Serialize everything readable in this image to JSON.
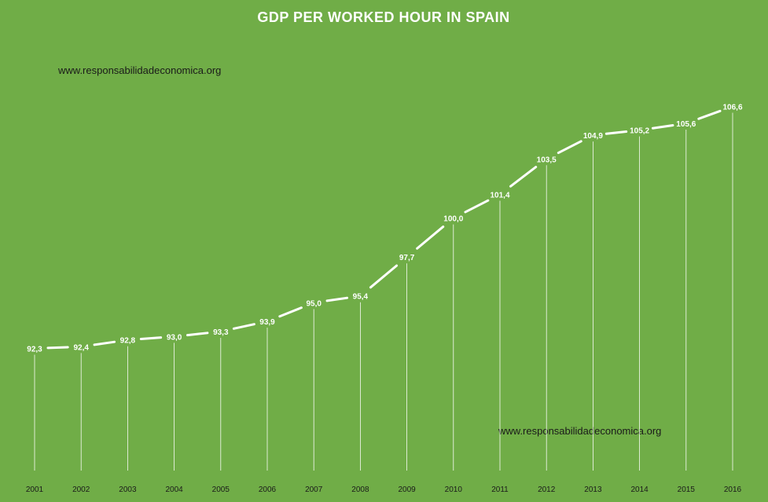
{
  "colors": {
    "background": "#70ad47",
    "line": "#ffffff",
    "text_dark": "#1a1a1a"
  },
  "watermarks": [
    "www.responsabilidadeconomica.org",
    "www.responsabilidadeconomica.org"
  ],
  "chart_data": {
    "type": "line",
    "title": "GDP PER WORKED HOUR IN SPAIN",
    "xlabel": "",
    "ylabel": "",
    "categories": [
      "2001",
      "2002",
      "2003",
      "2004",
      "2005",
      "2006",
      "2007",
      "2008",
      "2009",
      "2010",
      "2011",
      "2012",
      "2013",
      "2014",
      "2015",
      "2016"
    ],
    "series": [
      {
        "values": [
          92.3,
          92.4,
          92.8,
          93.0,
          93.3,
          93.9,
          95.0,
          95.4,
          97.7,
          100.0,
          101.4,
          103.5,
          104.9,
          105.2,
          105.6,
          106.6
        ],
        "labels": [
          "92,3",
          "92,4",
          "92,8",
          "93,0",
          "93,3",
          "93,9",
          "95,0",
          "95,4",
          "97,7",
          "100,0",
          "101,4",
          "103,5",
          "104,9",
          "105,2",
          "105,6",
          "106,6"
        ]
      }
    ],
    "grid": false,
    "legend": "none",
    "drop_lines": true
  }
}
